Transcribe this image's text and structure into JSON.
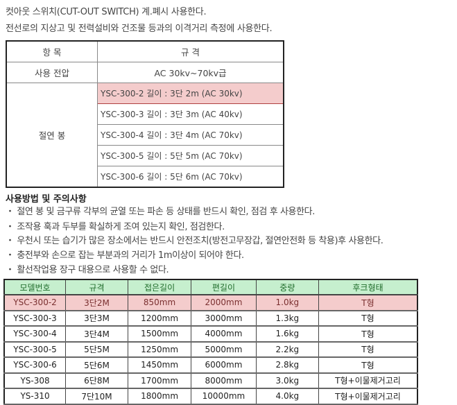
{
  "intro": [
    "컷아웃 스위치(CUT-OUT SWITCH) 계.폐시 사용한다.",
    "전선로의 지상고 및 전력설비와 건조물 등과의 이격거리 측정에 사용한다."
  ],
  "spec_table": {
    "headers": [
      "항 목",
      "규 격"
    ],
    "voltage_label": "사용 전압",
    "voltage_value": "AC 30kv~70kv급",
    "rod_label": "절연 봉",
    "rods": [
      "YSC-300-2 길이 : 3단 2m (AC 30kv)",
      "YSC-300-3 길이 : 3단 3m (AC 40kv)",
      "YSC-300-4 길이 : 3단 4m (AC 70kv)",
      "YSC-300-5 길이 : 5단 5m (AC 70kv)",
      "YSC-300-6 길이 : 5단 6m (AC 70kv)"
    ]
  },
  "usage": {
    "title": "사용방법 및 주의사항",
    "items": [
      "・ 절연 봉 및 금구류 각부의 균열 또는 파손 등 상태를 반드시 확인, 점검 후 사용한다.",
      "・ 조작용 훅과 두부를 확실하게 조여 있는지 확인, 점검한다.",
      "・ 우천시 또는 습기가 많은 장소에서는 반드시 안전조치(방전고무장갑, 절연안전화 등 착용)후 사용한다.",
      "・ 충전부와 손으로 잡는 부분과의 거리가 1m이상이 되어야 한다.",
      "・ 활선작업용 장구 대용으로 사용할 수 없다."
    ]
  },
  "model_table": {
    "headers": [
      "모델번호",
      "규격",
      "접은길이",
      "편길이",
      "중량",
      "후크형태"
    ],
    "rows": [
      [
        "YSC-300-2",
        "3단2M",
        "850mm",
        "2000mm",
        "1.0kg",
        "T형"
      ],
      [
        "YSC-300-3",
        "3단3M",
        "1200mm",
        "3000mm",
        "1.3kg",
        "T형"
      ],
      [
        "YSC-300-4",
        "3단4M",
        "1500mm",
        "4000mm",
        "1.6kg",
        "T형"
      ],
      [
        "YSC-300-5",
        "5단5M",
        "1250mm",
        "5000mm",
        "2.2kg",
        "T형"
      ],
      [
        "YSC-300-6",
        "5단6M",
        "1450mm",
        "6000mm",
        "2.8kg",
        "T형"
      ],
      [
        "YS-308",
        "6단8M",
        "1700mm",
        "8000mm",
        "3.0kg",
        "T형+이물제거고리"
      ],
      [
        "YS-310",
        "7단10M",
        "1800mm",
        "10000mm",
        "4.0kg",
        "T형+이물제거고리"
      ]
    ]
  },
  "colors": {
    "highlight": "#f4cccc",
    "header_green": "#c6efce"
  }
}
